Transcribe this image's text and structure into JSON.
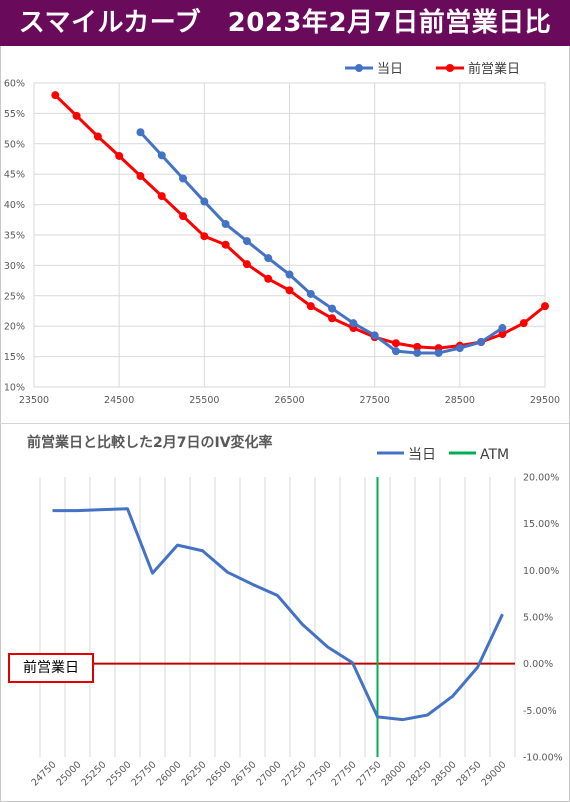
{
  "header": {
    "title": "スマイルカーブ　2023年2月7日前営業日比"
  },
  "chart_data": [
    {
      "type": "line",
      "title": "",
      "xlabel": "",
      "ylabel": "",
      "xlim": [
        23500,
        29500
      ],
      "ylim": [
        0.1,
        0.6
      ],
      "x_ticks": [
        "23500",
        "24500",
        "25500",
        "26500",
        "27500",
        "28500",
        "29500"
      ],
      "y_ticks": [
        "10%",
        "15%",
        "20%",
        "25%",
        "30%",
        "35%",
        "40%",
        "45%",
        "50%",
        "55%",
        "60%"
      ],
      "grid": true,
      "legend_position": "top-right",
      "series": [
        {
          "name": "当日",
          "color": "#4472c4",
          "x": [
            24750,
            25000,
            25250,
            25500,
            25750,
            26000,
            26250,
            26500,
            26750,
            27000,
            27250,
            27500,
            27750,
            28000,
            28250,
            28500,
            28750,
            29000
          ],
          "y": [
            0.519,
            0.481,
            0.443,
            0.405,
            0.368,
            0.34,
            0.312,
            0.285,
            0.253,
            0.229,
            0.205,
            0.185,
            0.159,
            0.156,
            0.156,
            0.164,
            0.174,
            0.197
          ]
        },
        {
          "name": "前営業日",
          "color": "#ff0000",
          "x": [
            23750,
            24000,
            24250,
            24500,
            24750,
            25000,
            25250,
            25500,
            25750,
            26000,
            26250,
            26500,
            26750,
            27000,
            27250,
            27500,
            27750,
            28000,
            28250,
            28500,
            28750,
            29000,
            29250,
            29500
          ],
          "y": [
            0.58,
            0.546,
            0.512,
            0.48,
            0.447,
            0.414,
            0.381,
            0.348,
            0.334,
            0.302,
            0.278,
            0.259,
            0.233,
            0.213,
            0.197,
            0.182,
            0.172,
            0.166,
            0.164,
            0.168,
            0.174,
            0.187,
            0.205,
            0.233
          ]
        }
      ]
    },
    {
      "type": "line",
      "title": "前営業日と比較した2月7日のIV変化率",
      "xlabel": "",
      "ylabel": "",
      "categories": [
        "24750",
        "25000",
        "25250",
        "25500",
        "25750",
        "26000",
        "26250",
        "26500",
        "26750",
        "27000",
        "27250",
        "27500",
        "27750",
        "27750",
        "28000",
        "28250",
        "28500",
        "28750",
        "29000"
      ],
      "ylim": [
        -0.1,
        0.2
      ],
      "y_ticks": [
        "20.00%",
        "15.00%",
        "10.00%",
        "5.00%",
        "0.00%",
        "-5.00%",
        "-10.00%"
      ],
      "grid": "vertical",
      "legend_position": "top",
      "series": [
        {
          "name": "当日",
          "color": "#4472c4",
          "values": [
            0.164,
            0.164,
            0.165,
            0.166,
            0.097,
            0.127,
            0.121,
            0.098,
            0.085,
            0.073,
            0.042,
            0.018,
            0.001,
            -0.057,
            -0.06,
            -0.055,
            -0.035,
            -0.004,
            0.053
          ]
        }
      ],
      "atm": {
        "name": "ATM",
        "color": "#00b050",
        "category_index": 13
      },
      "baseline": {
        "name": "前営業日",
        "value": 0.0,
        "color": "#c00000"
      }
    }
  ]
}
